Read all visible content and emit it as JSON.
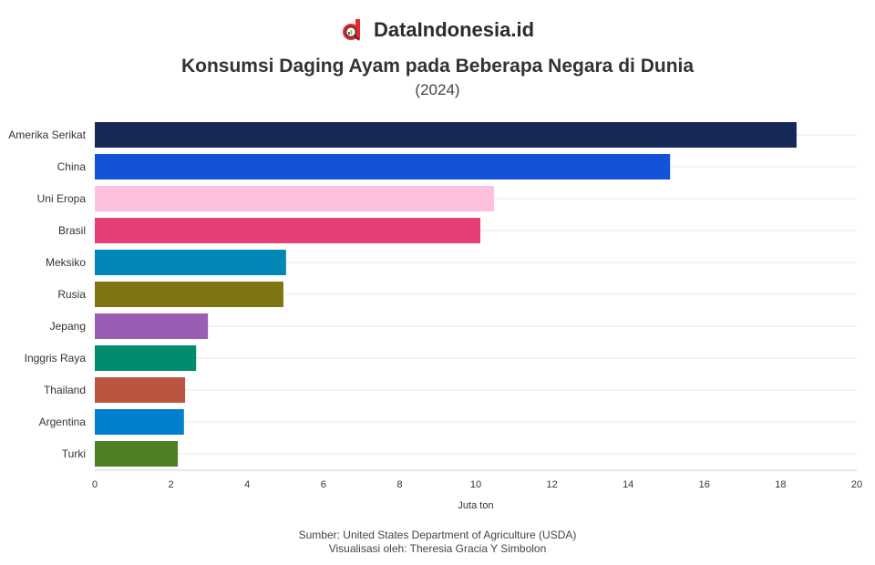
{
  "brand": {
    "name": "DataIndonesia.id",
    "icon": "magnifier-d-logo",
    "color": "#e8272d"
  },
  "chart_data": {
    "type": "bar",
    "orientation": "horizontal",
    "title": "Konsumsi Daging Ayam pada Beberapa Negara di Dunia",
    "subtitle": "(2024)",
    "xlabel": "Juta ton",
    "xlim": [
      0,
      20
    ],
    "xticks": [
      0,
      2,
      4,
      6,
      8,
      10,
      12,
      14,
      16,
      18,
      20
    ],
    "grid": true,
    "categories": [
      "Amerika Serikat",
      "China",
      "Uni Eropa",
      "Brasil",
      "Meksiko",
      "Rusia",
      "Jepang",
      "Inggris Raya",
      "Thailand",
      "Argentina",
      "Turki"
    ],
    "values": [
      18.42,
      15.1,
      10.48,
      10.12,
      5.02,
      4.95,
      2.97,
      2.66,
      2.37,
      2.34,
      2.18
    ],
    "colors": [
      "#162956",
      "#1353d8",
      "#fdc0de",
      "#e53f78",
      "#0087b5",
      "#7e7410",
      "#9b5db3",
      "#008b6c",
      "#bb5540",
      "#0080cc",
      "#4f7e23"
    ]
  },
  "footer": {
    "source": "Sumber: United States Department of Agriculture (USDA)",
    "credit": "Visualisasi oleh: Theresia Gracia Y Simbolon"
  }
}
